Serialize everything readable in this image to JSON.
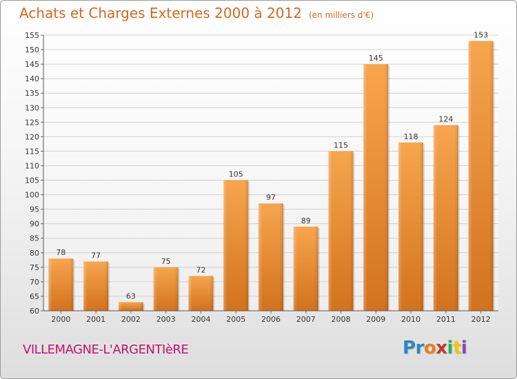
{
  "title": "Achats et Charges Externes 2000 à 2012",
  "subtitle": "(en milliers d'€)",
  "place": "VILLEMAGNE-L'ARGENTIèRE",
  "logo": {
    "letters": [
      "P",
      "r",
      "o",
      "x",
      "i",
      "t",
      "i"
    ],
    "colors": [
      "#2e86c1",
      "#2e86c1",
      "#e67e22",
      "#c0392b",
      "#27ae60",
      "#f1c40f",
      "#8e44ad"
    ]
  },
  "colors": {
    "bar_top": "#f7a54e",
    "bar_bottom": "#d2721e",
    "title": "#d2691e",
    "place": "#c0146e"
  },
  "chart_data": {
    "type": "bar",
    "categories": [
      "2000",
      "2001",
      "2002",
      "2003",
      "2004",
      "2005",
      "2006",
      "2007",
      "2008",
      "2009",
      "2010",
      "2011",
      "2012"
    ],
    "values": [
      78,
      77,
      63,
      75,
      72,
      105,
      97,
      89,
      115,
      145,
      118,
      124,
      153
    ],
    "ylim": [
      60,
      155
    ],
    "yticks": [
      60,
      65,
      70,
      75,
      80,
      85,
      90,
      95,
      100,
      105,
      110,
      115,
      120,
      125,
      130,
      135,
      140,
      145,
      150,
      155
    ],
    "grid": true
  }
}
